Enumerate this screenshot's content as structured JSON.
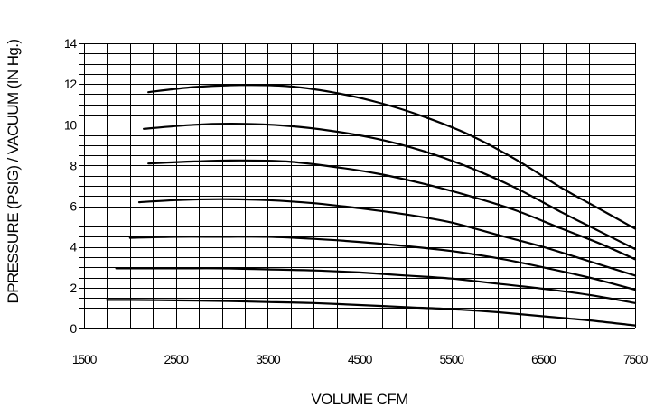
{
  "chart_data": {
    "type": "line",
    "title": "",
    "xlabel": "VOLUME CFM",
    "ylabel": "DPRESSURE (PSIG) / VACUUM (IN Hg.)",
    "xlim": [
      1500,
      7500
    ],
    "ylim": [
      0,
      14
    ],
    "x_ticks": [
      "1500",
      "2500",
      "3500",
      "4500",
      "5500",
      "6500",
      "7500"
    ],
    "y_ticks": [
      "0",
      "2",
      "4",
      "6",
      "8",
      "10",
      "12",
      "14"
    ],
    "grid": true,
    "series": [
      {
        "x": [
          2200,
          2700,
          3200,
          3700,
          4200,
          4700,
          5200,
          5700,
          6200,
          6700,
          7100,
          7500
        ],
        "values": [
          11.6,
          11.85,
          11.95,
          11.9,
          11.6,
          11.1,
          10.4,
          9.5,
          8.3,
          6.9,
          5.9,
          4.9
        ]
      },
      {
        "x": [
          2150,
          2700,
          3200,
          3700,
          4200,
          4700,
          5200,
          5700,
          6200,
          6700,
          7100,
          7500
        ],
        "values": [
          9.8,
          10.0,
          10.05,
          9.95,
          9.7,
          9.3,
          8.7,
          7.9,
          6.9,
          5.7,
          4.8,
          3.9
        ]
      },
      {
        "x": [
          2200,
          2700,
          3200,
          3700,
          4200,
          4700,
          5200,
          5700,
          6200,
          6700,
          7100,
          7500
        ],
        "values": [
          8.1,
          8.2,
          8.25,
          8.2,
          7.95,
          7.6,
          7.1,
          6.5,
          5.8,
          4.9,
          4.2,
          3.4
        ]
      },
      {
        "x": [
          2100,
          2500,
          3000,
          3500,
          4000,
          4500,
          5000,
          5500,
          6000,
          6500,
          7000,
          7500
        ],
        "values": [
          6.2,
          6.3,
          6.35,
          6.3,
          6.15,
          5.9,
          5.6,
          5.2,
          4.6,
          4.0,
          3.3,
          2.6
        ]
      },
      {
        "x": [
          2000,
          2500,
          3000,
          3500,
          4000,
          4500,
          5000,
          5500,
          6000,
          6500,
          7000,
          7500
        ],
        "values": [
          4.45,
          4.5,
          4.5,
          4.5,
          4.4,
          4.25,
          4.05,
          3.8,
          3.45,
          3.0,
          2.5,
          1.9
        ]
      },
      {
        "x": [
          1850,
          2500,
          3000,
          3500,
          4000,
          4500,
          5000,
          5500,
          6000,
          6500,
          7000,
          7500
        ],
        "values": [
          2.95,
          2.95,
          2.95,
          2.9,
          2.85,
          2.75,
          2.6,
          2.45,
          2.2,
          1.95,
          1.65,
          1.25
        ]
      },
      {
        "x": [
          1750,
          2000,
          2500,
          3000,
          3500,
          4000,
          4500,
          5000,
          5500,
          6000,
          6500,
          7000,
          7500
        ],
        "values": [
          1.4,
          1.4,
          1.38,
          1.35,
          1.3,
          1.25,
          1.15,
          1.05,
          0.95,
          0.8,
          0.6,
          0.4,
          0.15
        ]
      }
    ]
  }
}
